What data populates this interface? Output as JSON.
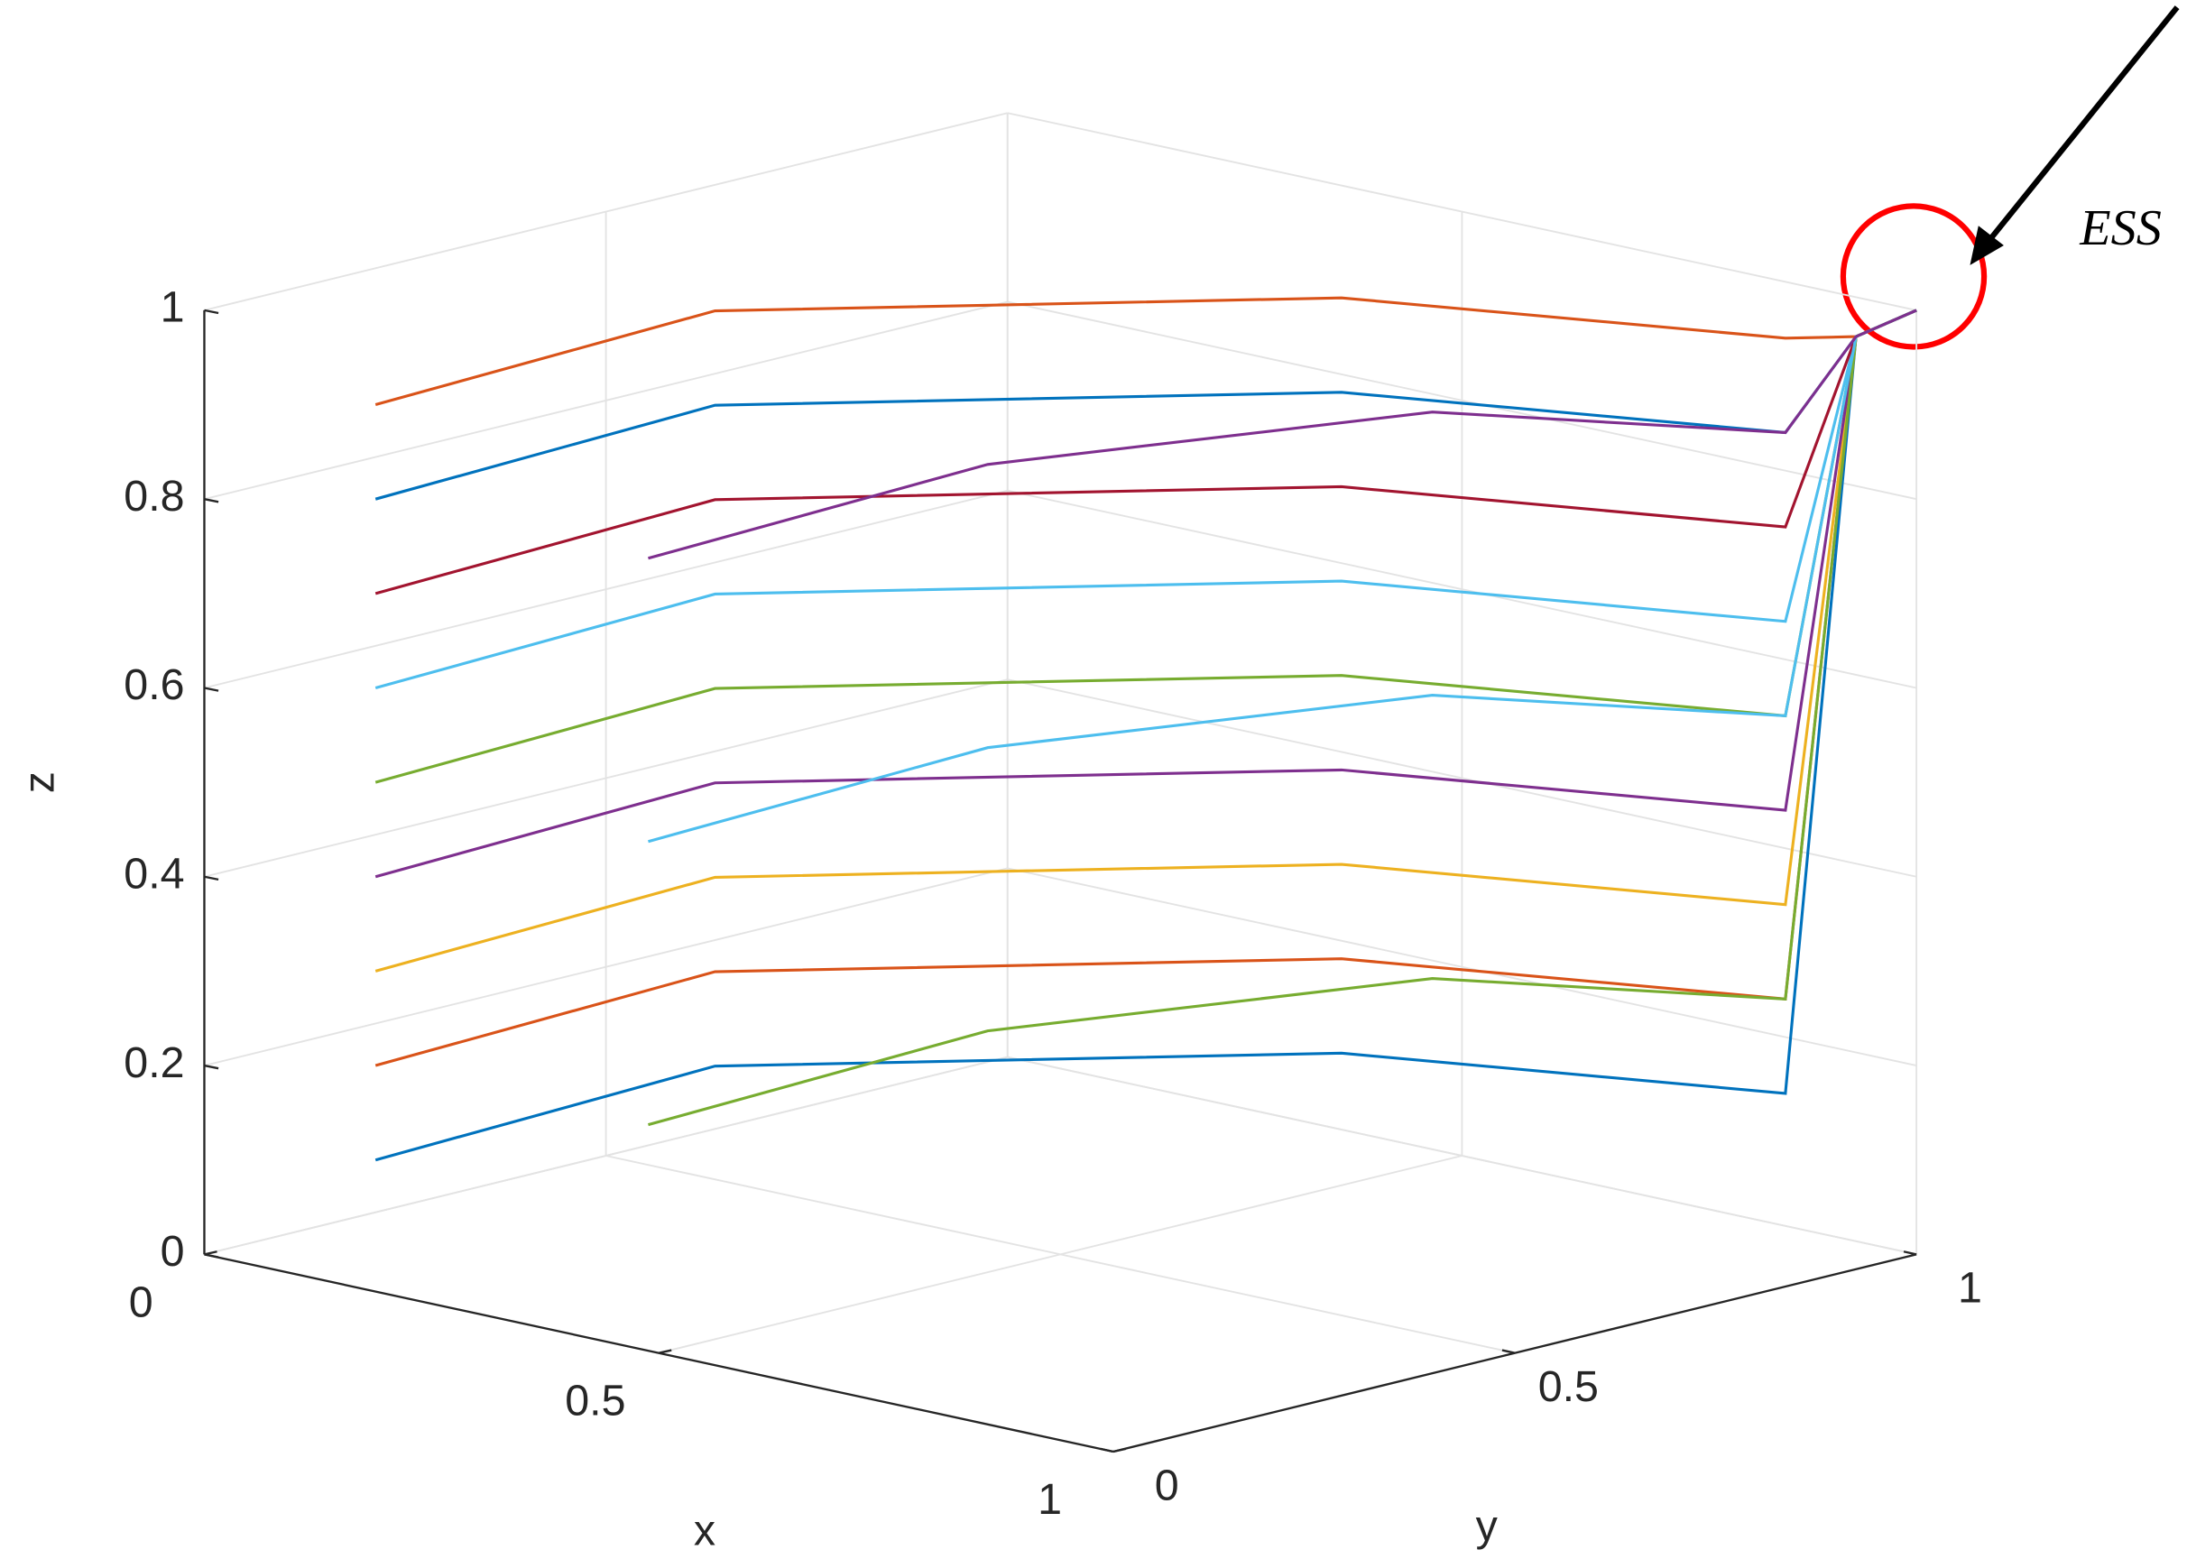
{
  "chart_data": {
    "type": "line3d",
    "xlabel": "x",
    "ylabel": "y",
    "zlabel": "z",
    "annotation": "ESS",
    "xlim": [
      0,
      1
    ],
    "ylim": [
      0,
      1
    ],
    "zlim": [
      0,
      1
    ],
    "xticks": [
      0,
      0.5,
      1
    ],
    "yticks": [
      0,
      0.5,
      1
    ],
    "zticks": [
      0,
      0.2,
      0.4,
      0.6,
      0.8,
      1
    ],
    "grid": true,
    "series": [
      {
        "color": "#0072BD",
        "x": [
          0.1,
          0.12,
          0.5,
          0.9,
          0.96,
          1
        ],
        "y": [
          0.1,
          0.5,
          0.85,
          0.95,
          0.97,
          1
        ],
        "z": [
          0.1,
          0.12,
          0.14,
          0.16,
          0.97,
          1
        ]
      },
      {
        "color": "#D95319",
        "x": [
          0.1,
          0.12,
          0.5,
          0.9,
          0.96,
          1
        ],
        "y": [
          0.1,
          0.5,
          0.85,
          0.95,
          0.97,
          1
        ],
        "z": [
          0.2,
          0.22,
          0.24,
          0.26,
          0.97,
          1
        ]
      },
      {
        "color": "#EDB120",
        "x": [
          0.1,
          0.12,
          0.5,
          0.9,
          0.96,
          1
        ],
        "y": [
          0.1,
          0.5,
          0.85,
          0.95,
          0.97,
          1
        ],
        "z": [
          0.3,
          0.32,
          0.34,
          0.36,
          0.97,
          1
        ]
      },
      {
        "color": "#7E2F8E",
        "x": [
          0.1,
          0.12,
          0.5,
          0.9,
          0.96,
          1
        ],
        "y": [
          0.1,
          0.5,
          0.85,
          0.95,
          0.97,
          1
        ],
        "z": [
          0.4,
          0.42,
          0.44,
          0.46,
          0.97,
          1
        ]
      },
      {
        "color": "#77AC30",
        "x": [
          0.1,
          0.12,
          0.5,
          0.9,
          0.96,
          1
        ],
        "y": [
          0.1,
          0.5,
          0.85,
          0.95,
          0.97,
          1
        ],
        "z": [
          0.5,
          0.52,
          0.54,
          0.56,
          0.97,
          1
        ]
      },
      {
        "color": "#4DBEEE",
        "x": [
          0.1,
          0.12,
          0.5,
          0.9,
          0.96,
          1
        ],
        "y": [
          0.1,
          0.5,
          0.85,
          0.95,
          0.97,
          1
        ],
        "z": [
          0.6,
          0.62,
          0.64,
          0.66,
          0.97,
          1
        ]
      },
      {
        "color": "#A2142F",
        "x": [
          0.1,
          0.12,
          0.5,
          0.9,
          0.96,
          1
        ],
        "y": [
          0.1,
          0.5,
          0.85,
          0.95,
          0.97,
          1
        ],
        "z": [
          0.7,
          0.72,
          0.74,
          0.76,
          0.97,
          1
        ]
      },
      {
        "color": "#0072BD",
        "x": [
          0.1,
          0.12,
          0.5,
          0.9,
          0.96,
          1
        ],
        "y": [
          0.1,
          0.5,
          0.85,
          0.95,
          0.97,
          1
        ],
        "z": [
          0.8,
          0.82,
          0.84,
          0.86,
          0.97,
          1
        ]
      },
      {
        "color": "#D95319",
        "x": [
          0.1,
          0.12,
          0.5,
          0.9,
          0.96,
          1
        ],
        "y": [
          0.1,
          0.5,
          0.85,
          0.95,
          0.97,
          1
        ],
        "z": [
          0.9,
          0.92,
          0.94,
          0.96,
          0.97,
          1
        ]
      },
      {
        "color": "#77AC30",
        "x": [
          0.4,
          0.42,
          0.6,
          0.9,
          0.96,
          1
        ],
        "y": [
          0.1,
          0.5,
          0.85,
          0.95,
          0.97,
          1
        ],
        "z": [
          0.2,
          0.22,
          0.24,
          0.26,
          0.97,
          1
        ]
      },
      {
        "color": "#4DBEEE",
        "x": [
          0.4,
          0.42,
          0.6,
          0.9,
          0.96,
          1
        ],
        "y": [
          0.1,
          0.5,
          0.85,
          0.95,
          0.97,
          1
        ],
        "z": [
          0.5,
          0.52,
          0.54,
          0.56,
          0.97,
          1
        ]
      },
      {
        "color": "#7E2F8E",
        "x": [
          0.4,
          0.42,
          0.6,
          0.9,
          0.96,
          1
        ],
        "y": [
          0.1,
          0.5,
          0.85,
          0.95,
          0.97,
          1
        ],
        "z": [
          0.8,
          0.82,
          0.84,
          0.86,
          0.97,
          1
        ]
      }
    ]
  }
}
